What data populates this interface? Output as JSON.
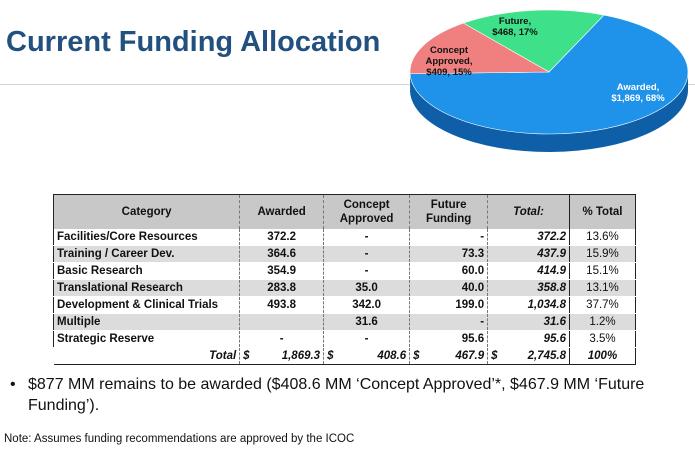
{
  "title": "Current Funding Allocation",
  "chart_data": {
    "type": "pie",
    "slices": [
      {
        "label": "Awarded,\n$1,869, 68%",
        "value": 1869,
        "percent": 68,
        "color": "#1f93ea",
        "shade": "#0f5fa8"
      },
      {
        "label": "Concept\nApproved,\n$409, 15%",
        "value": 409,
        "percent": 15,
        "color": "#f08080",
        "shade": "#c45c5c"
      },
      {
        "label": "Future,\n$468, 17%",
        "value": 468,
        "percent": 17,
        "color": "#3ee08a",
        "shade": "#22a863"
      }
    ]
  },
  "table": {
    "headers": {
      "category": "Category",
      "awarded": "Awarded",
      "concept": "Concept Approved",
      "future": "Future Funding",
      "total": "Total:",
      "pct": "% Total"
    },
    "rows": [
      {
        "category": "Facilities/Core Resources",
        "awarded": "372.2",
        "concept": "-",
        "future": "-",
        "total": "372.2",
        "pct": "13.6%"
      },
      {
        "category": "Training / Career Dev.",
        "awarded": "364.6",
        "concept": "-",
        "future": "73.3",
        "total": "437.9",
        "pct": "15.9%"
      },
      {
        "category": "Basic Research",
        "awarded": "354.9",
        "concept": "-",
        "future": "60.0",
        "total": "414.9",
        "pct": "15.1%"
      },
      {
        "category": "Translational Research",
        "awarded": "283.8",
        "concept": "35.0",
        "future": "40.0",
        "total": "358.8",
        "pct": "13.1%"
      },
      {
        "category": "Development & Clinical Trials",
        "awarded": "493.8",
        "concept": "342.0",
        "future": "199.0",
        "total": "1,034.8",
        "pct": "37.7%"
      },
      {
        "category": "Multiple",
        "awarded": "",
        "concept": "31.6",
        "future": "-",
        "total": "31.6",
        "pct": "1.2%"
      },
      {
        "category": "Strategic Reserve",
        "awarded": "-",
        "concept": "-",
        "future": "95.6",
        "total": "95.6",
        "pct": "3.5%"
      }
    ],
    "totals": {
      "label": "Total",
      "currency": "$",
      "awarded": "1,869.3",
      "concept": "408.6",
      "future": "467.9",
      "total": "2,745.8",
      "pct": "100%"
    }
  },
  "bullet": "$877 MM remains to be awarded ($408.6 MM ‘Concept Approved’*, $467.9 MM ‘Future Funding’).",
  "note": "Note: Assumes funding recommendations are approved by the ICOC"
}
